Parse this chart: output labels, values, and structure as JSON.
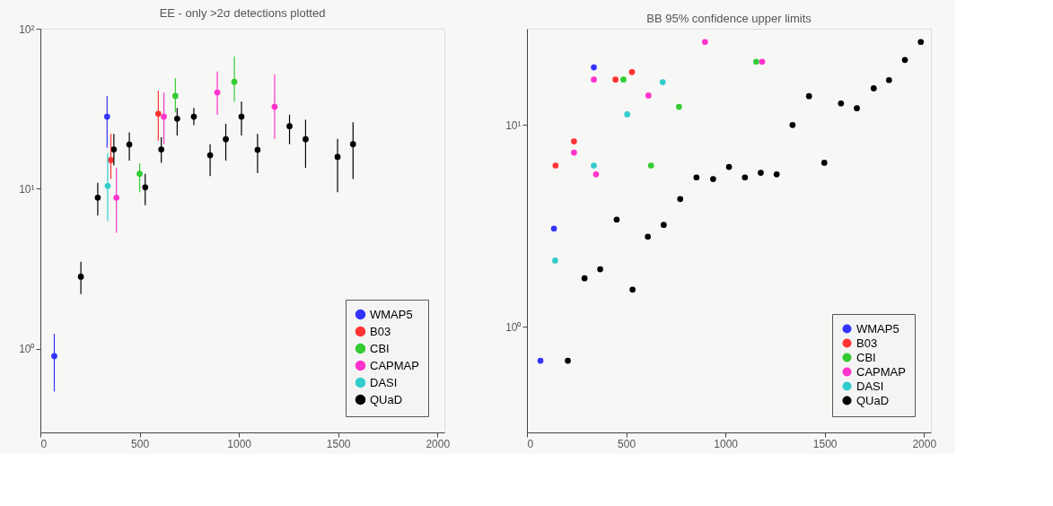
{
  "chart_data": [
    {
      "type": "scatter",
      "title": "EE - only >2σ detections plotted",
      "xlim": [
        0,
        2035
      ],
      "xticks": [
        0,
        500,
        1000,
        1500,
        2000
      ],
      "ylim": [
        0.3,
        100
      ],
      "yticks": [
        {
          "value": 1,
          "label": "10⁰"
        },
        {
          "value": 10,
          "label": "10¹"
        },
        {
          "value": 100,
          "label": "10²"
        }
      ],
      "log": "y",
      "grid": false,
      "legend": "bottom right",
      "marker": "circle",
      "series": [
        {
          "name": "WMAP5",
          "color": "#3333ff",
          "x": [
            70,
            336
          ],
          "values": [
            0.9,
            28.2
          ],
          "errors": [
            [
              0.54,
              1.24
            ],
            [
              18,
              38
            ]
          ]
        },
        {
          "name": "B03",
          "color": "#ff3333",
          "x": [
            355,
            594
          ],
          "values": [
            15.1,
            29.4
          ],
          "errors": [
            [
              11.5,
              22
            ],
            [
              20,
              41
            ]
          ]
        },
        {
          "name": "CBI",
          "color": "#33cc33",
          "x": [
            500,
            680,
            977
          ],
          "values": [
            12.4,
            38,
            46.6
          ],
          "errors": [
            [
              9.5,
              14.4
            ],
            [
              30,
              49
            ],
            [
              35,
              67
            ]
          ]
        },
        {
          "name": "CAPMAP",
          "color": "#ff33cc",
          "x": [
            383,
            622,
            891,
            1180
          ],
          "values": [
            8.8,
            28.2,
            40,
            32.5
          ],
          "errors": [
            [
              5.3,
              13.5
            ],
            [
              19,
              40
            ],
            [
              29,
              54
            ],
            [
              20.5,
              52
            ]
          ]
        },
        {
          "name": "DASI",
          "color": "#33cccc",
          "x": [
            339
          ],
          "values": [
            10.4
          ],
          "errors": [
            [
              6.3,
              16.7
            ]
          ]
        },
        {
          "name": "QUaD",
          "color": "#000000",
          "x": [
            204,
            289,
            370,
            448,
            528,
            609,
            689,
            773,
            855,
            934,
            1013,
            1094,
            1255,
            1336,
            1497,
            1575
          ],
          "values": [
            2.82,
            8.8,
            17.6,
            18.9,
            10.2,
            17.6,
            27.4,
            28.2,
            16.2,
            20.4,
            28.2,
            17.5,
            24.6,
            20.4,
            15.8,
            19.0
          ],
          "errors": [
            [
              2.2,
              3.5
            ],
            [
              6.8,
              10.9
            ],
            [
              14,
              22
            ],
            [
              15,
              22.5
            ],
            [
              7.9,
              12.4
            ],
            [
              14.5,
              21
            ],
            [
              21.5,
              32
            ],
            [
              25,
              32
            ],
            [
              12,
              19
            ],
            [
              15,
              25.5
            ],
            [
              21.5,
              35
            ],
            [
              12.5,
              22
            ],
            [
              19,
              29
            ],
            [
              13.5,
              27
            ],
            [
              9.5,
              20.5
            ],
            [
              11.5,
              26
            ]
          ]
        }
      ]
    },
    {
      "type": "scatter",
      "title": "BB 95% confidence upper limits",
      "xlim": [
        0,
        2035
      ],
      "xticks": [
        0,
        500,
        1000,
        1500,
        2000
      ],
      "ylim": [
        0.3,
        30
      ],
      "yticks": [
        {
          "value": 1,
          "label": "10⁰"
        },
        {
          "value": 10,
          "label": "10¹"
        }
      ],
      "log": "y",
      "grid": false,
      "legend": "bottom right",
      "marker": "circle",
      "series": [
        {
          "name": "WMAP5",
          "color": "#3333ff",
          "x": [
            68,
            136,
            337
          ],
          "values": [
            0.68,
            3.07,
            19.3
          ]
        },
        {
          "name": "B03",
          "color": "#ff3333",
          "x": [
            144,
            237,
            446,
            529
          ],
          "values": [
            6.3,
            8.3,
            16.8,
            18.3
          ]
        },
        {
          "name": "CBI",
          "color": "#33cc33",
          "x": [
            486,
            625,
            766,
            1155
          ],
          "values": [
            16.8,
            6.3,
            12.3,
            20.6
          ]
        },
        {
          "name": "CAPMAP",
          "color": "#ff33cc",
          "x": [
            237,
            337,
            348,
            612,
            897,
            1185
          ],
          "values": [
            7.3,
            16.8,
            5.7,
            14.0,
            25.8,
            20.6
          ]
        },
        {
          "name": "DASI",
          "color": "#33cccc",
          "x": [
            142,
            337,
            505,
            684
          ],
          "values": [
            2.13,
            6.3,
            11.3,
            16.3
          ]
        },
        {
          "name": "QUaD",
          "color": "#000000",
          "x": [
            206,
            290,
            369,
            452,
            532,
            609,
            689,
            772,
            854,
            938,
            1018,
            1098,
            1178,
            1258,
            1338,
            1421,
            1498,
            1582,
            1662,
            1747,
            1824,
            1904,
            1984
          ],
          "values": [
            0.68,
            1.74,
            1.93,
            3.4,
            1.53,
            2.8,
            3.2,
            4.3,
            5.5,
            5.4,
            6.2,
            5.5,
            5.8,
            5.7,
            10.0,
            13.9,
            6.5,
            12.8,
            12.1,
            15.2,
            16.7,
            21.0,
            25.8
          ]
        }
      ]
    }
  ]
}
